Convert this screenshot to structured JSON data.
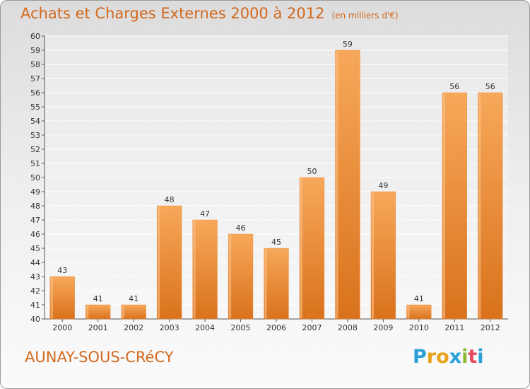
{
  "header": {
    "title": "Achats et Charges Externes 2000 à 2012",
    "subtitle": "(en milliers d'€)"
  },
  "footer": {
    "commune": "AUNAY-SOUS-CRéCY",
    "logo": [
      "P",
      "r",
      "o",
      "x",
      "i",
      "t",
      "i"
    ],
    "logo_colors": [
      "#2a9fd8",
      "#e8a21a",
      "#e8a21a",
      "#2a9fd8",
      "#8ab734",
      "#e84a5f",
      "#2a9fd8"
    ]
  },
  "colors": {
    "bar_light": "#f7a85a",
    "bar_dark": "#d9721c",
    "text_orange": "#d2691e"
  },
  "chart_data": {
    "type": "bar",
    "title": "Achats et Charges Externes 2000 à 2012",
    "subtitle": "(en milliers d'€)",
    "categories": [
      "2000",
      "2001",
      "2002",
      "2003",
      "2004",
      "2005",
      "2006",
      "2007",
      "2008",
      "2009",
      "2010",
      "2011",
      "2012"
    ],
    "values": [
      43,
      41,
      41,
      48,
      47,
      46,
      45,
      50,
      59,
      49,
      41,
      56,
      56
    ],
    "ylim": [
      40,
      60
    ],
    "yticks": [
      40,
      41,
      42,
      43,
      44,
      45,
      46,
      47,
      48,
      49,
      50,
      51,
      52,
      53,
      54,
      55,
      56,
      57,
      58,
      59,
      60
    ],
    "grid": true,
    "xlabel": "",
    "ylabel": ""
  }
}
